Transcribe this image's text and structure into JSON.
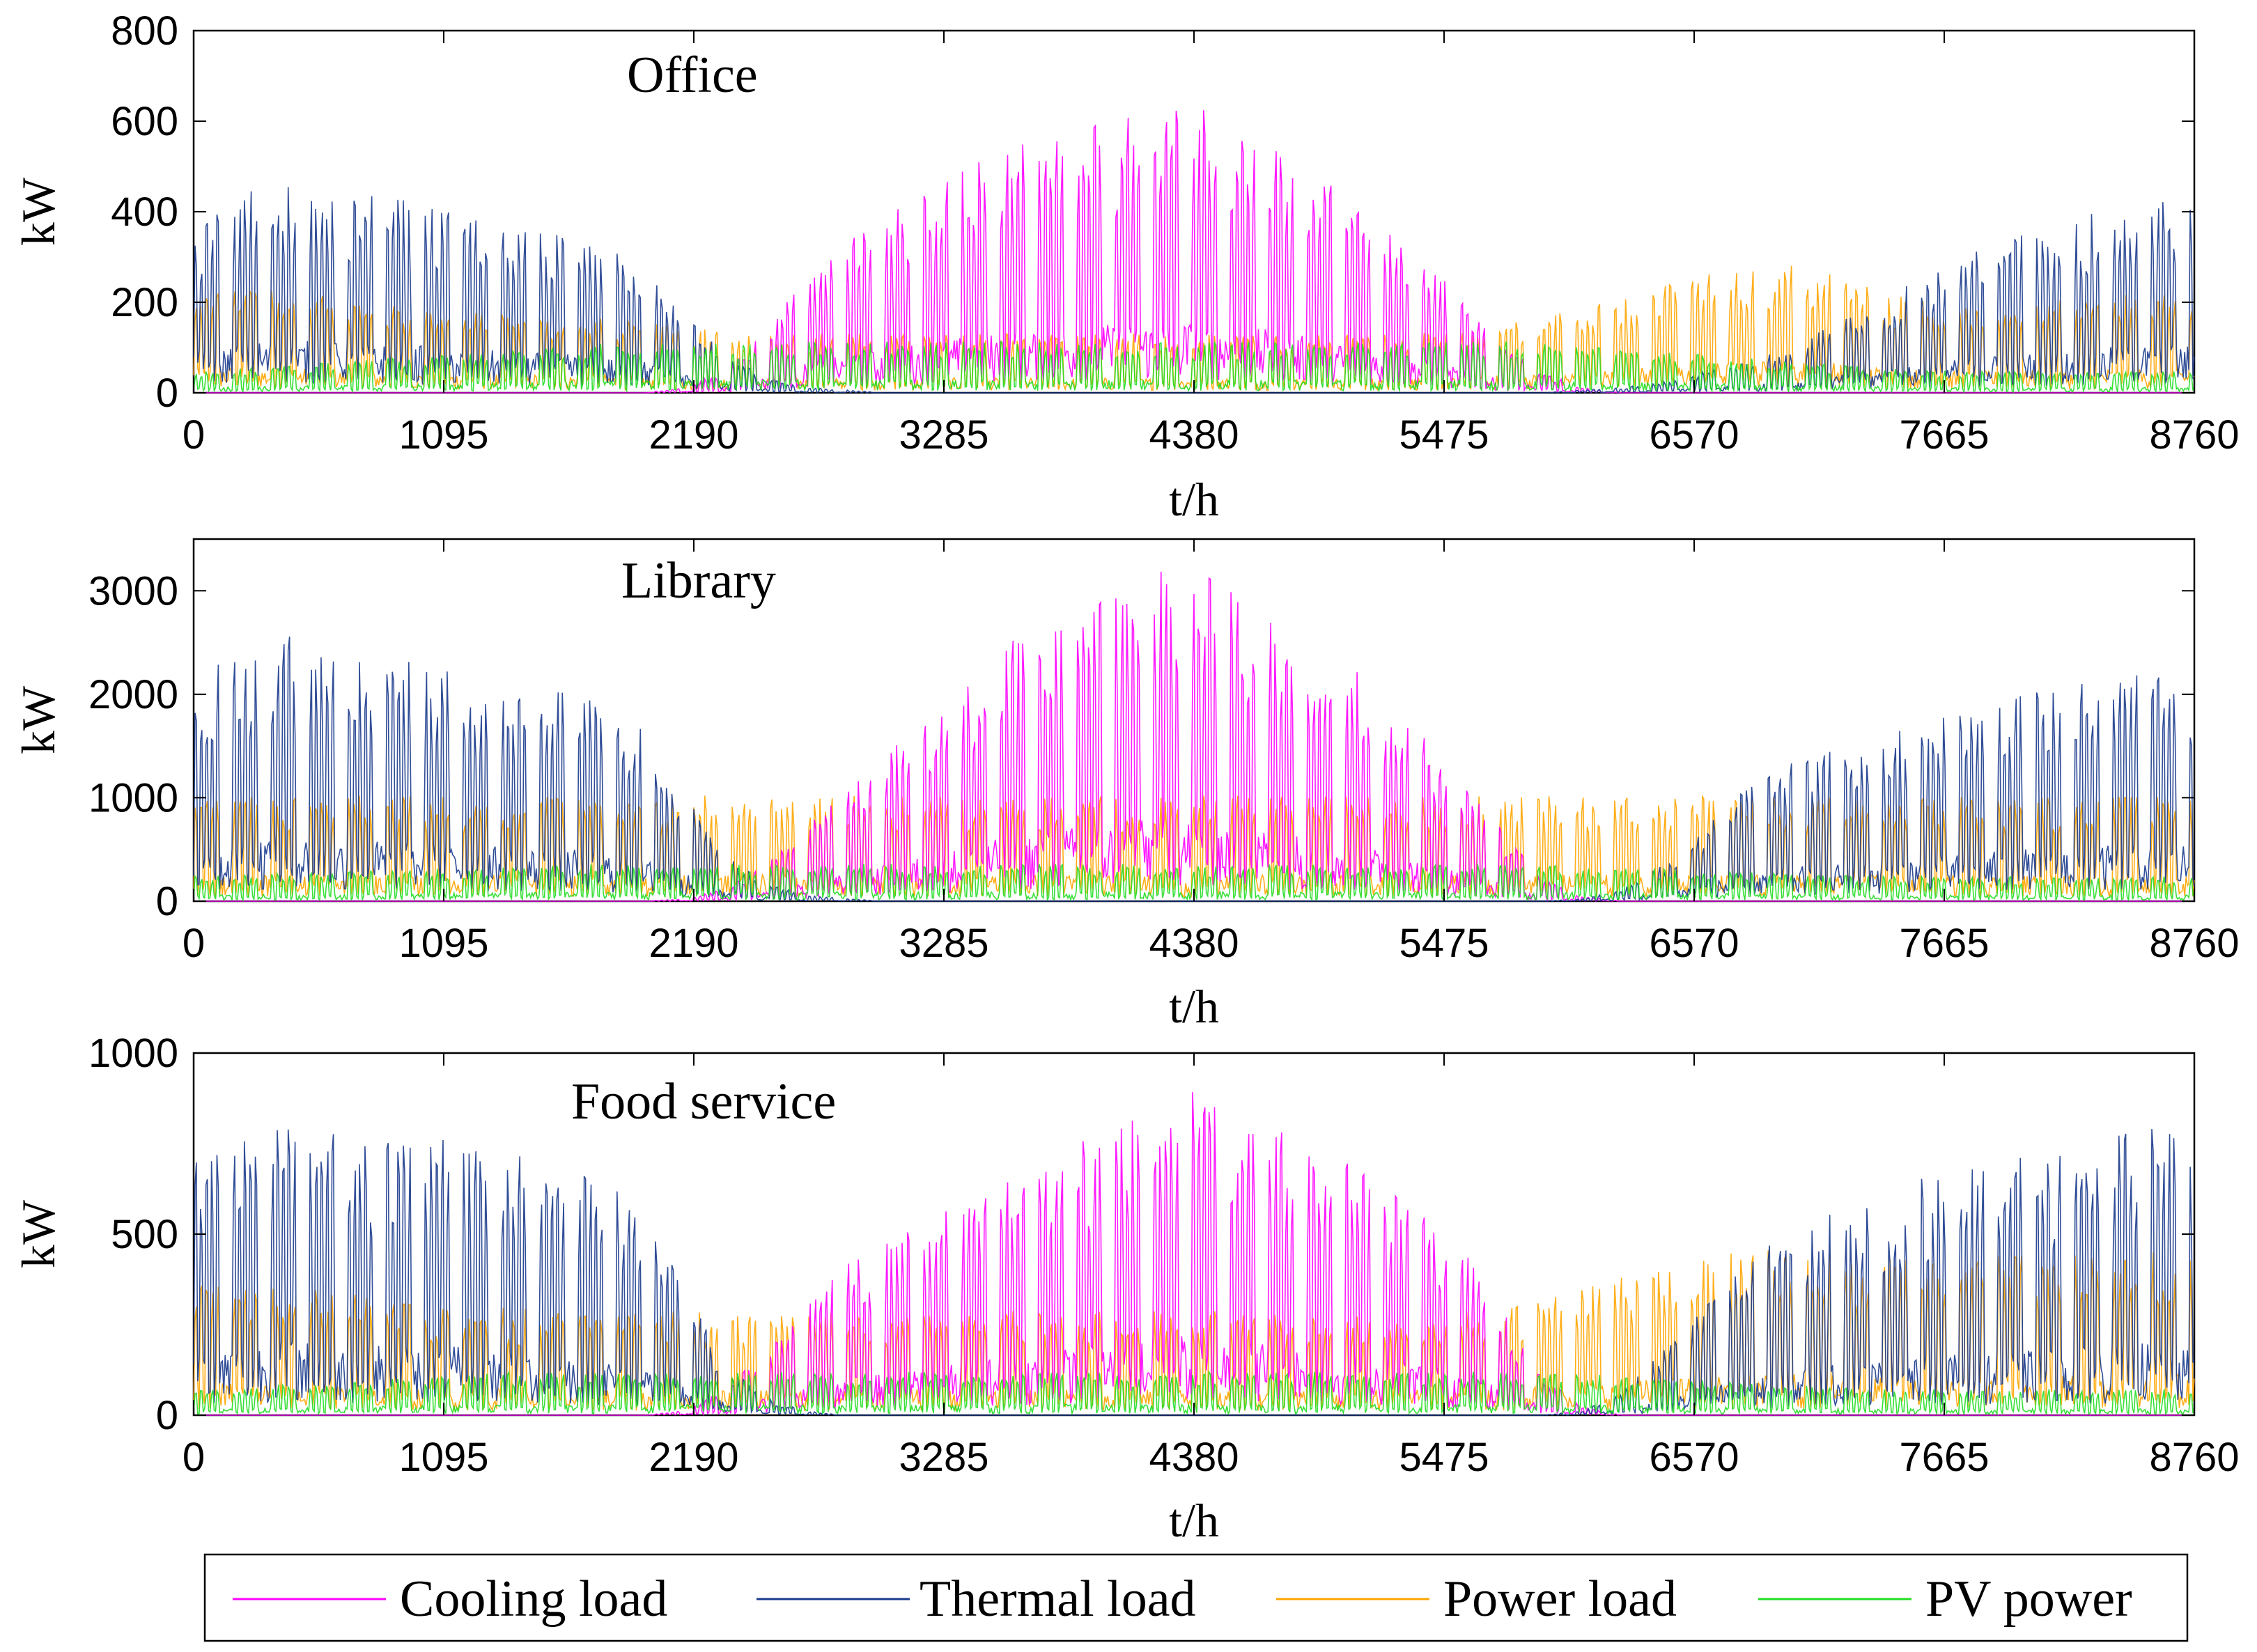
{
  "chart_data": [
    {
      "type": "line",
      "title": "Office",
      "xlabel": "t/h",
      "ylabel": "kW",
      "xlim": [
        0,
        8760
      ],
      "ylim": [
        0,
        800
      ],
      "xticks": [
        0,
        1095,
        2190,
        3285,
        4380,
        5475,
        6570,
        7665,
        8760
      ],
      "yticks": [
        0,
        200,
        400,
        600,
        800
      ],
      "series": [
        {
          "name": "Cooling load",
          "color": "#ff00ff",
          "base": [
            0,
            0,
            0,
            0,
            0,
            0,
            0,
            0,
            0,
            0,
            0,
            0,
            10,
            40,
            120,
            220,
            280,
            330,
            380,
            420,
            460,
            480,
            500,
            520,
            540,
            520,
            480,
            430,
            380,
            320,
            260,
            180,
            100,
            40,
            10,
            0,
            0,
            0,
            0,
            0,
            0,
            0,
            0,
            0,
            0,
            0,
            0,
            0,
            0,
            0
          ]
        },
        {
          "name": "Thermal load",
          "color": "#1a3a8c",
          "base": [
            300,
            360,
            400,
            380,
            370,
            360,
            340,
            320,
            300,
            290,
            270,
            240,
            150,
            70,
            30,
            10,
            5,
            0,
            0,
            0,
            0,
            0,
            0,
            0,
            0,
            0,
            0,
            0,
            0,
            0,
            0,
            0,
            0,
            0,
            5,
            10,
            20,
            40,
            60,
            80,
            120,
            160,
            200,
            240,
            280,
            300,
            320,
            340,
            360,
            350
          ]
        },
        {
          "name": "Power load",
          "color": "#ffa500",
          "base": [
            180,
            200,
            190,
            180,
            170,
            160,
            150,
            150,
            140,
            140,
            140,
            130,
            120,
            120,
            110,
            110,
            110,
            110,
            110,
            110,
            110,
            110,
            110,
            110,
            110,
            110,
            110,
            110,
            110,
            110,
            110,
            110,
            130,
            140,
            160,
            180,
            200,
            220,
            230,
            240,
            230,
            200,
            180,
            160,
            160,
            170,
            170,
            180,
            180,
            180
          ]
        },
        {
          "name": "PV power",
          "color": "#22dd22",
          "base": [
            40,
            45,
            50,
            55,
            60,
            65,
            70,
            75,
            80,
            85,
            90,
            90,
            90,
            95,
            95,
            95,
            95,
            95,
            95,
            95,
            95,
            95,
            95,
            95,
            95,
            95,
            95,
            95,
            95,
            95,
            95,
            95,
            95,
            90,
            85,
            80,
            75,
            70,
            65,
            60,
            55,
            50,
            45,
            40,
            40,
            40,
            40,
            40,
            40,
            40
          ]
        }
      ]
    },
    {
      "type": "line",
      "title": "Library",
      "xlabel": "t/h",
      "ylabel": "kW",
      "xlim": [
        0,
        8760
      ],
      "ylim": [
        0,
        3500
      ],
      "xticks": [
        0,
        1095,
        2190,
        3285,
        4380,
        5475,
        6570,
        7665,
        8760
      ],
      "yticks": [
        0,
        1000,
        2000,
        3000
      ],
      "series": [
        {
          "name": "Cooling load",
          "color": "#ff00ff",
          "base": [
            0,
            0,
            0,
            0,
            0,
            0,
            0,
            0,
            0,
            0,
            0,
            0,
            20,
            100,
            300,
            600,
            900,
            1200,
            1500,
            1800,
            2100,
            2300,
            2500,
            2600,
            2700,
            2600,
            2400,
            2200,
            2000,
            1700,
            1400,
            1000,
            600,
            200,
            40,
            0,
            0,
            0,
            0,
            0,
            0,
            0,
            0,
            0,
            0,
            0,
            0,
            0,
            0,
            0
          ]
        },
        {
          "name": "Thermal load",
          "color": "#1a3a8c",
          "base": [
            1800,
            2000,
            2200,
            2100,
            2000,
            1950,
            1900,
            1800,
            1750,
            1700,
            1600,
            1400,
            900,
            400,
            150,
            50,
            20,
            0,
            0,
            0,
            0,
            0,
            0,
            0,
            0,
            0,
            0,
            0,
            0,
            0,
            0,
            0,
            0,
            0,
            20,
            100,
            300,
            600,
            900,
            1100,
            1200,
            1300,
            1400,
            1500,
            1600,
            1700,
            1750,
            1800,
            1850,
            1900
          ]
        },
        {
          "name": "Power load",
          "color": "#ffa500",
          "base": [
            850,
            850,
            850,
            850,
            850,
            850,
            850,
            850,
            850,
            850,
            850,
            850,
            850,
            850,
            850,
            850,
            850,
            850,
            850,
            850,
            850,
            850,
            850,
            850,
            850,
            850,
            850,
            850,
            850,
            850,
            850,
            850,
            850,
            850,
            850,
            850,
            850,
            850,
            850,
            850,
            850,
            850,
            850,
            850,
            850,
            850,
            850,
            850,
            850,
            850
          ]
        },
        {
          "name": "PV power",
          "color": "#22dd22",
          "base": [
            200,
            210,
            220,
            230,
            240,
            250,
            260,
            270,
            280,
            290,
            300,
            300,
            300,
            300,
            300,
            300,
            300,
            300,
            300,
            300,
            300,
            300,
            300,
            300,
            300,
            300,
            300,
            300,
            300,
            300,
            300,
            300,
            300,
            290,
            280,
            270,
            260,
            250,
            240,
            230,
            220,
            210,
            200,
            200,
            200,
            200,
            200,
            200,
            200,
            200
          ]
        }
      ]
    },
    {
      "type": "line",
      "title": "Food service",
      "xlabel": "t/h",
      "ylabel": "kW",
      "xlim": [
        0,
        8760
      ],
      "ylim": [
        0,
        1000
      ],
      "xticks": [
        0,
        1095,
        2190,
        3285,
        4380,
        5475,
        6570,
        7665,
        8760
      ],
      "yticks": [
        0,
        500,
        1000
      ],
      "series": [
        {
          "name": "Cooling load",
          "color": "#ff00ff",
          "base": [
            0,
            0,
            0,
            0,
            0,
            0,
            0,
            0,
            0,
            0,
            0,
            0,
            10,
            60,
            150,
            250,
            350,
            400,
            450,
            500,
            550,
            600,
            650,
            700,
            760,
            740,
            700,
            650,
            600,
            550,
            500,
            400,
            250,
            100,
            20,
            0,
            0,
            0,
            0,
            0,
            0,
            0,
            0,
            0,
            0,
            0,
            0,
            0,
            0,
            0
          ]
        },
        {
          "name": "Thermal load",
          "color": "#1a3a8c",
          "base": [
            600,
            650,
            700,
            680,
            660,
            650,
            640,
            620,
            600,
            580,
            550,
            480,
            300,
            120,
            40,
            10,
            0,
            0,
            0,
            0,
            0,
            0,
            0,
            0,
            0,
            0,
            0,
            0,
            0,
            0,
            0,
            0,
            0,
            0,
            10,
            60,
            150,
            250,
            350,
            420,
            460,
            500,
            540,
            560,
            580,
            600,
            620,
            650,
            680,
            600
          ]
        },
        {
          "name": "Power load",
          "color": "#ffa500",
          "base": [
            300,
            310,
            300,
            290,
            280,
            270,
            260,
            250,
            250,
            240,
            240,
            240,
            240,
            240,
            240,
            240,
            240,
            240,
            240,
            240,
            240,
            240,
            240,
            240,
            240,
            240,
            240,
            240,
            240,
            240,
            240,
            240,
            260,
            280,
            300,
            320,
            340,
            360,
            380,
            380,
            370,
            360,
            360,
            360,
            370,
            380,
            380,
            380,
            380,
            380
          ]
        },
        {
          "name": "PV power",
          "color": "#22dd22",
          "base": [
            60,
            65,
            70,
            75,
            80,
            85,
            90,
            95,
            100,
            100,
            100,
            100,
            100,
            100,
            100,
            100,
            100,
            100,
            100,
            100,
            100,
            100,
            100,
            100,
            100,
            100,
            100,
            100,
            100,
            100,
            100,
            100,
            100,
            100,
            95,
            90,
            85,
            80,
            75,
            70,
            65,
            60,
            60,
            60,
            60,
            60,
            60,
            60,
            60,
            60
          ]
        }
      ]
    }
  ],
  "legend": {
    "position": "bottom",
    "entries": [
      {
        "label": "Cooling load",
        "color": "#ff00ff"
      },
      {
        "label": "Thermal load",
        "color": "#1a3a8c"
      },
      {
        "label": "Power load",
        "color": "#ffa500"
      },
      {
        "label": "PV power",
        "color": "#22dd22"
      }
    ]
  }
}
